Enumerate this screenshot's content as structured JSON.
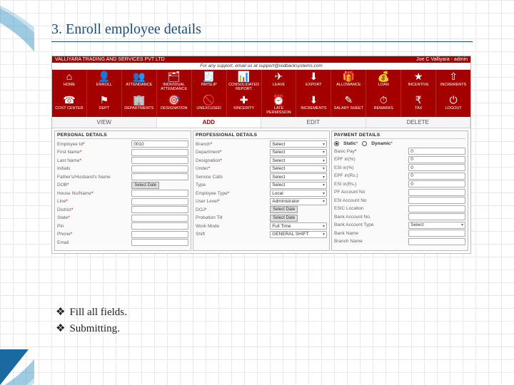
{
  "slide": {
    "title": "3. Enroll employee details",
    "bullets": [
      "Fill all fields.",
      "Submitting."
    ]
  },
  "topbar": {
    "company": "VALLIYARA TRADING AND SERVICES PVT LTD",
    "user": "Joe C Valliyara - admin",
    "support": "For any support, email us at support@redbacksystems.com"
  },
  "nav_rows": [
    [
      {
        "icon": "⌂",
        "label": "HOME"
      },
      {
        "icon": "👤",
        "label": "ENROLL"
      },
      {
        "icon": "👥",
        "label": "ATTENDANCE"
      },
      {
        "icon": "🗂",
        "label": "INDIVIDUAL ATTENDANCE"
      },
      {
        "icon": "🧾",
        "label": "PAYSLIP"
      },
      {
        "icon": "📊",
        "label": "CONSOLIDATED REPORT"
      },
      {
        "icon": "✈",
        "label": "LEAVE"
      },
      {
        "icon": "⬇",
        "label": "EXPORT"
      },
      {
        "icon": "🎁",
        "label": "ALLOWANCE"
      },
      {
        "icon": "💰",
        "label": "LOAN"
      },
      {
        "icon": "★",
        "label": "INCENTIVE"
      },
      {
        "icon": "⇧",
        "label": "INCREMENTS"
      }
    ],
    [
      {
        "icon": "☎",
        "label": "COST CENTER"
      },
      {
        "icon": "⚑",
        "label": "DEPT"
      },
      {
        "icon": "🏢",
        "label": "DEPARTMENTS"
      },
      {
        "icon": "🎯",
        "label": "DESIGNATION"
      },
      {
        "icon": "🚫",
        "label": "UNEXCUSED"
      },
      {
        "icon": "✚",
        "label": "SINCERITY"
      },
      {
        "icon": "⏰",
        "label": "LATE PERMISSION"
      },
      {
        "icon": "⬇",
        "label": "INCREMENTS"
      },
      {
        "icon": "✎",
        "label": "SALARY SHEET"
      },
      {
        "icon": "⏱",
        "label": "REMARKS"
      },
      {
        "icon": "₹",
        "label": "TAX"
      },
      {
        "icon": "⏻",
        "label": "LOGOUT"
      }
    ]
  ],
  "tabs": {
    "items": [
      "VIEW",
      "ADD",
      "EDIT",
      "DELETE"
    ],
    "active": "ADD"
  },
  "panels": {
    "personal": {
      "title": "PERSONAL DETAILS",
      "rows": [
        {
          "label": "Employee Id",
          "req": true,
          "value": "0010",
          "kind": "text"
        },
        {
          "label": "First Name",
          "req": true,
          "value": "",
          "kind": "text"
        },
        {
          "label": "Last Name",
          "req": true,
          "value": "",
          "kind": "text"
        },
        {
          "label": "Initials",
          "req": false,
          "value": "",
          "kind": "text"
        },
        {
          "label": "Father's/Husband's Name",
          "req": false,
          "value": "",
          "kind": "text"
        },
        {
          "label": "DOB",
          "req": true,
          "value": "Select Date",
          "kind": "date"
        },
        {
          "label": "House No/Name",
          "req": true,
          "value": "",
          "kind": "text"
        },
        {
          "label": "Line",
          "req": true,
          "value": "",
          "kind": "text"
        },
        {
          "label": "District",
          "req": true,
          "value": "",
          "kind": "text"
        },
        {
          "label": "State",
          "req": true,
          "value": "",
          "kind": "text"
        },
        {
          "label": "Pin",
          "req": false,
          "value": "",
          "kind": "text"
        },
        {
          "label": "Phone",
          "req": true,
          "value": "",
          "kind": "text"
        },
        {
          "label": "Email",
          "req": false,
          "value": "",
          "kind": "text"
        }
      ]
    },
    "professional": {
      "title": "PROFESSIONAL DETAILS",
      "rows": [
        {
          "label": "Branch",
          "req": true,
          "value": "Select",
          "kind": "select"
        },
        {
          "label": "Department",
          "req": true,
          "value": "Select",
          "kind": "select"
        },
        {
          "label": "Designation",
          "req": true,
          "value": "Select",
          "kind": "select"
        },
        {
          "label": "Under",
          "req": true,
          "value": "Select",
          "kind": "select"
        },
        {
          "label": "Service Calls",
          "req": false,
          "value": "Select",
          "kind": "select"
        },
        {
          "label": "Type",
          "req": false,
          "value": "Select",
          "kind": "select"
        },
        {
          "label": "Employee Type",
          "req": true,
          "value": "Local",
          "kind": "select"
        },
        {
          "label": "User Level",
          "req": true,
          "value": "Administrator",
          "kind": "select"
        },
        {
          "label": "DOJ",
          "req": true,
          "value": "Select Date",
          "kind": "date"
        },
        {
          "label": "Probation Till",
          "req": false,
          "value": "Select Date",
          "kind": "date"
        },
        {
          "label": "Work Mode",
          "req": false,
          "value": "Full Time",
          "kind": "select"
        },
        {
          "label": "Shift",
          "req": false,
          "value": "GENERAL SHIFT",
          "kind": "select"
        }
      ]
    },
    "payment": {
      "title": "PAYMENT DETAILS",
      "radio": {
        "options": [
          "Static",
          "Dynamic"
        ],
        "selected": "Static"
      },
      "rows": [
        {
          "label": "Basic Pay",
          "req": true,
          "value": "0",
          "kind": "text"
        },
        {
          "label": "EPF in(%)",
          "req": false,
          "value": "0",
          "kind": "text"
        },
        {
          "label": "ESI in(%)",
          "req": false,
          "value": "0",
          "kind": "text"
        },
        {
          "label": "EPF in(Rs.)",
          "req": false,
          "value": "0",
          "kind": "text"
        },
        {
          "label": "ESI in(Rs.)",
          "req": false,
          "value": "0",
          "kind": "text"
        },
        {
          "label": "PF Account No",
          "req": false,
          "value": "",
          "kind": "text"
        },
        {
          "label": "ESI Account No",
          "req": false,
          "value": "",
          "kind": "text"
        },
        {
          "label": "ESIC Location",
          "req": false,
          "value": "",
          "kind": "text"
        },
        {
          "label": "Bank Account No.",
          "req": false,
          "value": "",
          "kind": "text"
        },
        {
          "label": "Bank Account Type",
          "req": false,
          "value": "Select",
          "kind": "select"
        },
        {
          "label": "Bank Name",
          "req": false,
          "value": "",
          "kind": "text"
        },
        {
          "label": "Branch Name",
          "req": false,
          "value": "",
          "kind": "text"
        }
      ]
    }
  },
  "colors": {
    "brand_red": "#a40000",
    "title_blue": "#1a4e78"
  }
}
